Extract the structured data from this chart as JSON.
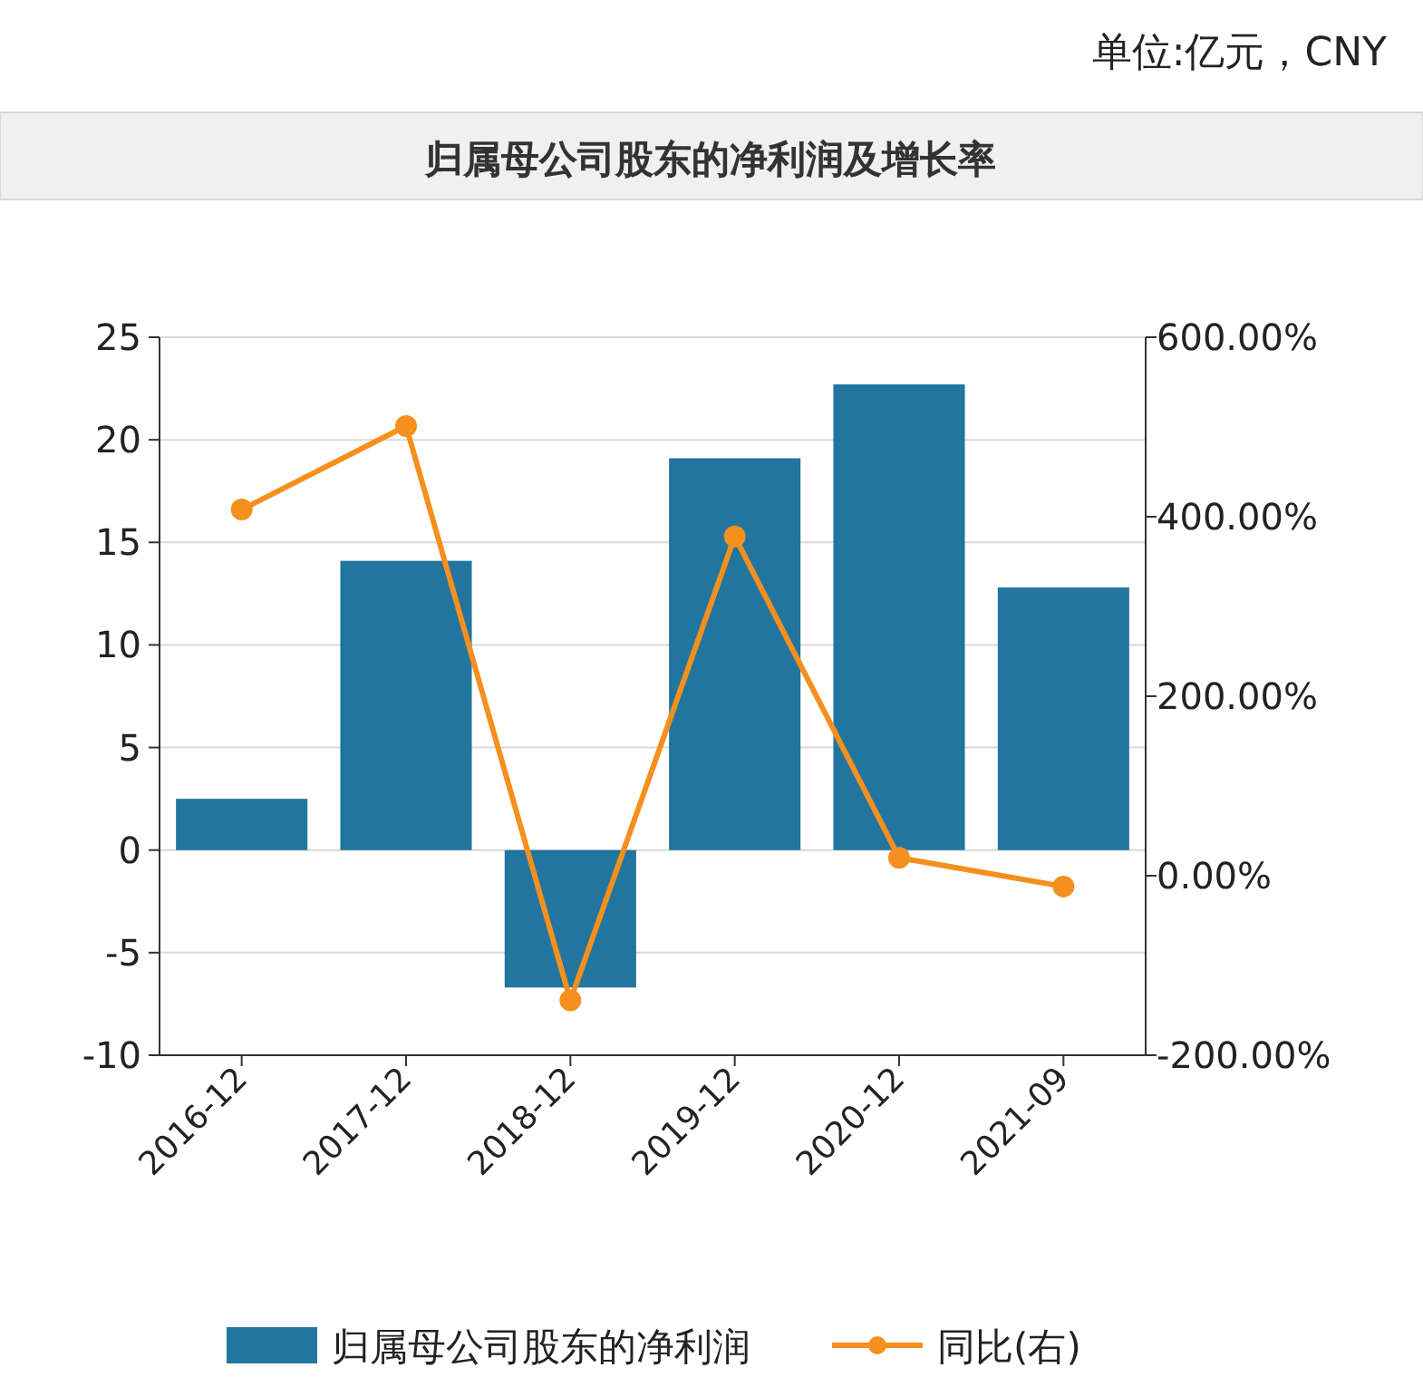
{
  "chart_data": {
    "type": "bar",
    "title": "归属母公司股东的净利润及增长率",
    "annotations": [
      "单位:亿元，CNY"
    ],
    "categories": [
      "2016-12",
      "2017-12",
      "2018-12",
      "2019-12",
      "2020-12",
      "2021-09"
    ],
    "series": [
      {
        "name": "归属母公司股东的净利润",
        "color": "#21759f",
        "values": [
          2.5,
          14.1,
          -6.7,
          19.1,
          22.7,
          12.8
        ]
      },
      {
        "name": "同比(右)",
        "type": "line",
        "axis": "y2",
        "color": "#f5901e",
        "marker": "circle",
        "values": [
          408,
          501,
          -139,
          378,
          20,
          -12
        ]
      }
    ],
    "ylim": [
      -10,
      25
    ],
    "yticks": [
      -10,
      -5,
      0,
      5,
      10,
      15,
      20,
      25
    ],
    "y2lim": [
      -200,
      600
    ],
    "y2ticks": [
      {
        "value": -200,
        "label": "-200.00%"
      },
      {
        "value": 0,
        "label": "0.00%"
      },
      {
        "value": 200,
        "label": "200.00%"
      },
      {
        "value": 400,
        "label": "400.00%"
      },
      {
        "value": 600,
        "label": "600.00%"
      }
    ],
    "grid": "y",
    "legend": "bottom"
  }
}
